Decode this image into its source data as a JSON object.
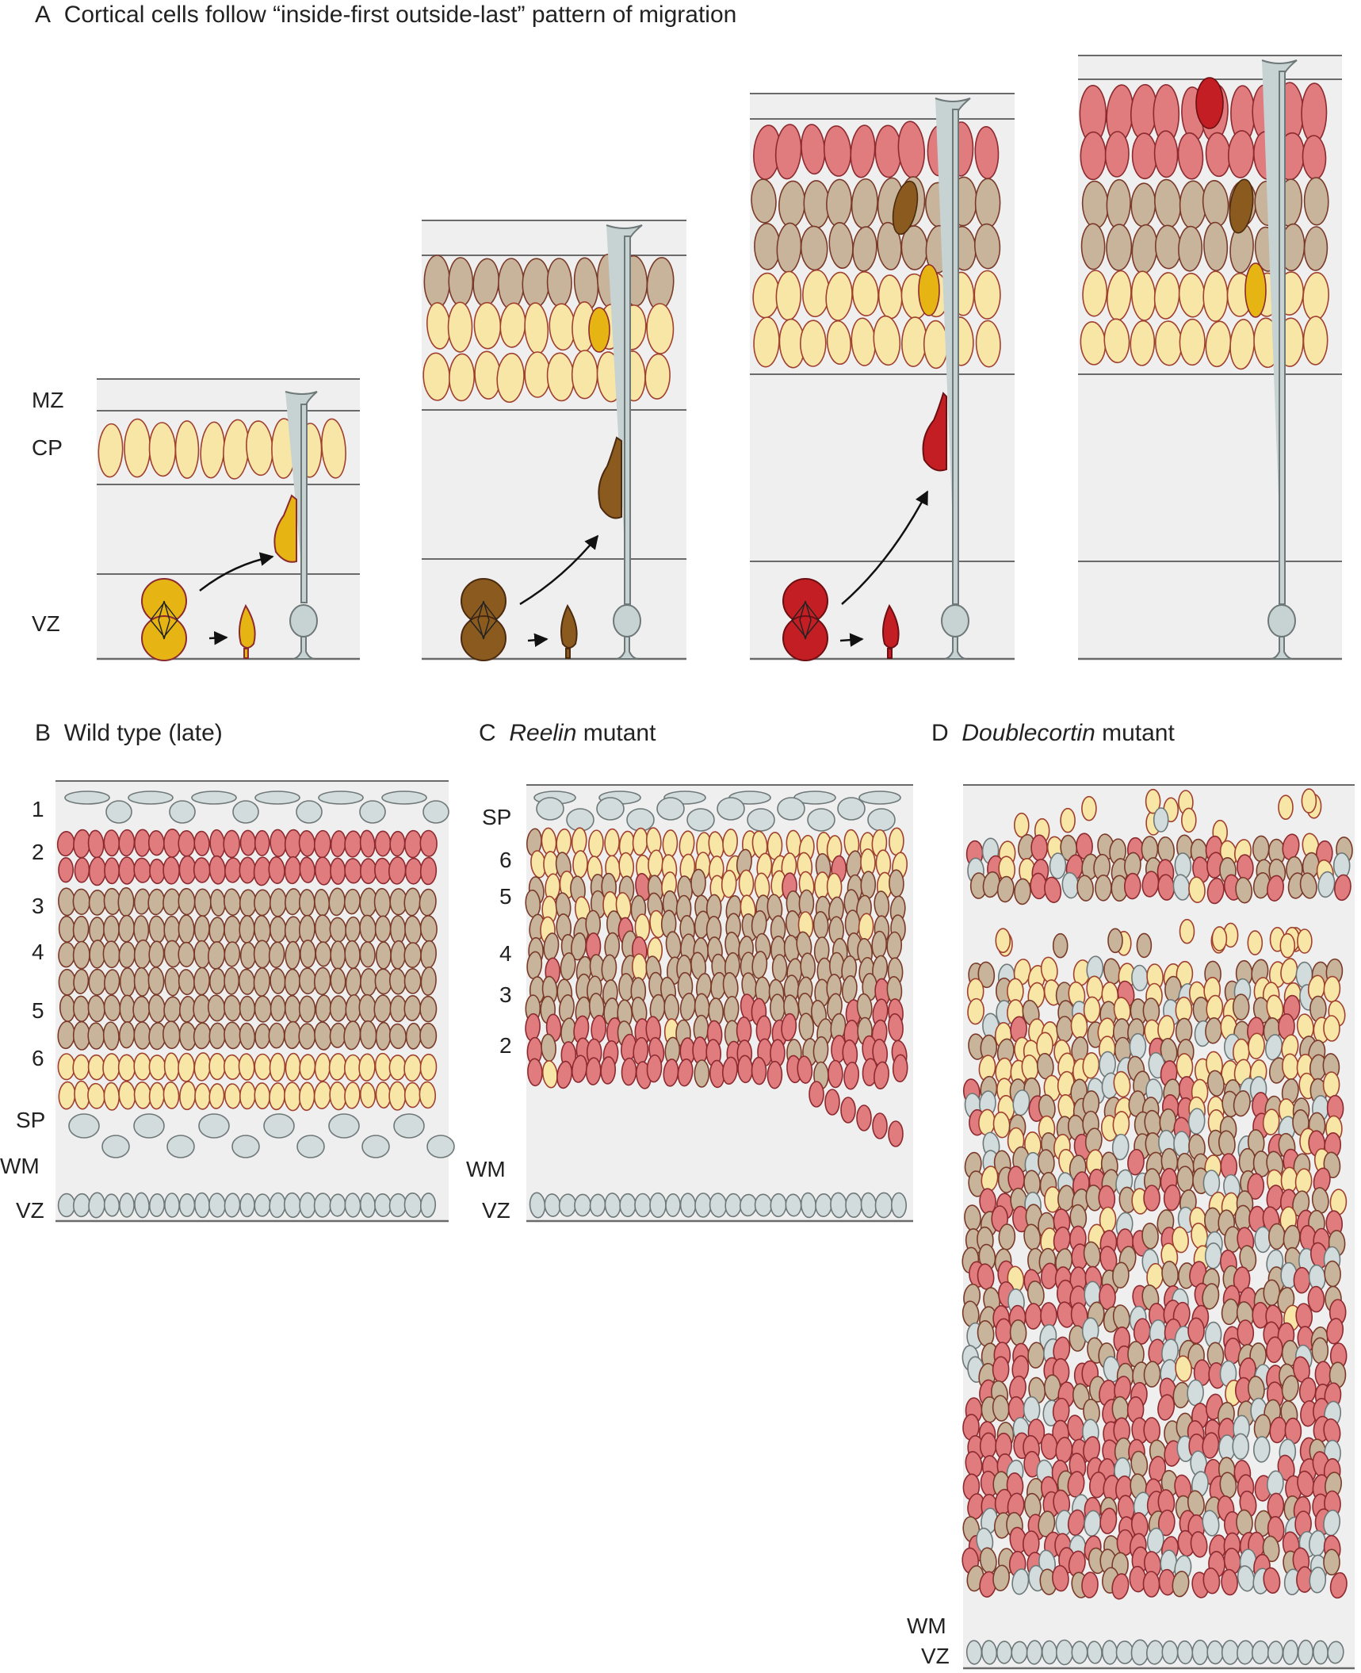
{
  "colors": {
    "bg_panel": "#efefef",
    "line": "#6a6a6a",
    "yellow_fill": "#f8e6a7",
    "yellow_stroke": "#a0402f",
    "tan_fill": "#c8b49a",
    "tan_stroke": "#7a3a2a",
    "red_fill": "#e07b7e",
    "red_stroke": "#8c2a2f",
    "grey_fill": "#d2dcdc",
    "grey_stroke": "#6f7878",
    "gold_cell": "#e6b514",
    "brown_cell": "#8a5a1e",
    "crimson_cell": "#c21e23",
    "radial_glia": "#c7d2d3"
  },
  "panelA": {
    "letter": "A",
    "title": "Cortical cells follow “inside-first outside-last” pattern of migration",
    "labels": {
      "mz": "MZ",
      "cp": "CP",
      "vz": "VZ"
    }
  },
  "panelB": {
    "letter": "B",
    "title": "Wild type (late)",
    "layers": [
      "1",
      "2",
      "3",
      "4",
      "5",
      "6",
      "SP",
      "WM",
      "VZ"
    ]
  },
  "panelC": {
    "letter": "C",
    "title_italic": "Reelin",
    "title_rest": " mutant",
    "layers": [
      "SP",
      "6",
      "5",
      "4",
      "3",
      "2",
      "WM",
      "VZ"
    ]
  },
  "panelD": {
    "letter": "D",
    "title_italic": "Doublecortin",
    "title_rest": " mutant",
    "layers": [
      "WM",
      "VZ"
    ]
  }
}
